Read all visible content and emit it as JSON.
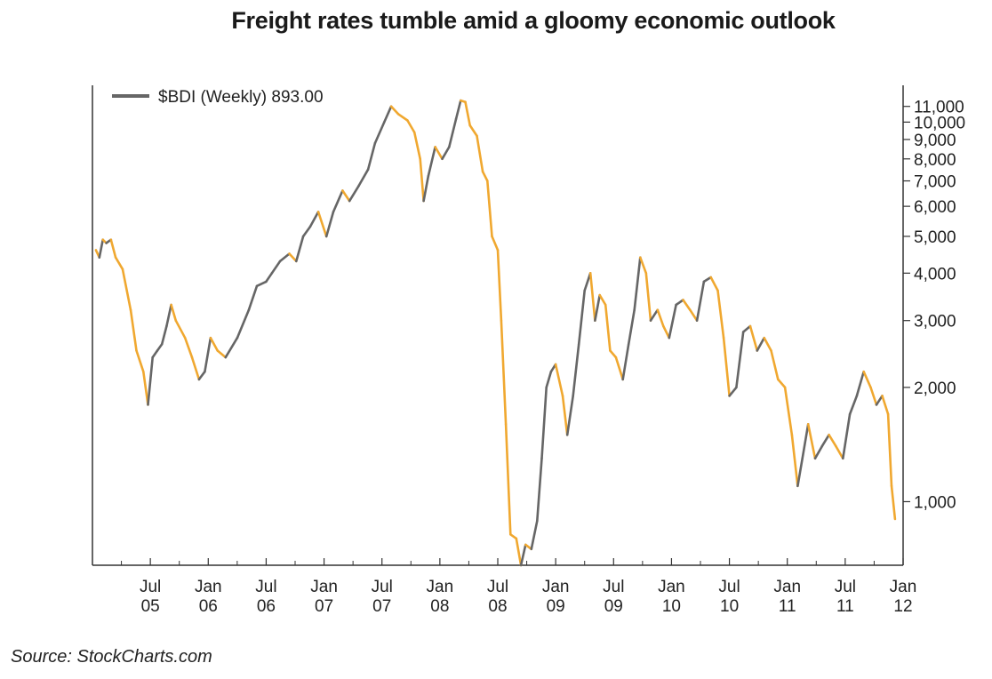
{
  "title": "Freight rates tumble amid a gloomy economic outlook",
  "source": "Source: StockCharts.com",
  "chart_data": {
    "type": "line",
    "title": "Freight rates tumble amid a gloomy economic outlook",
    "xlabel": "",
    "ylabel": "",
    "y_scale": "log",
    "ylim": [
      680,
      12500
    ],
    "grid": false,
    "legend_position": "top-left",
    "legend_label": "$BDI (Weekly) 893.00",
    "colors": {
      "line": "#666666",
      "down": "#f0a830",
      "axis": "#333333"
    },
    "y_ticks": [
      {
        "value": 1000,
        "label": "1,000"
      },
      {
        "value": 2000,
        "label": "2,000"
      },
      {
        "value": 3000,
        "label": "3,000"
      },
      {
        "value": 4000,
        "label": "4,000"
      },
      {
        "value": 5000,
        "label": "5,000"
      },
      {
        "value": 6000,
        "label": "6,000"
      },
      {
        "value": 7000,
        "label": "7,000"
      },
      {
        "value": 8000,
        "label": "8,000"
      },
      {
        "value": 9000,
        "label": "9,000"
      },
      {
        "value": 10000,
        "label": "10,000"
      },
      {
        "value": 11000,
        "label": "11,000"
      }
    ],
    "x_ticks": [
      {
        "x": 2005.5,
        "line1": "Jul",
        "line2": "05"
      },
      {
        "x": 2006.0,
        "line1": "Jan",
        "line2": "06"
      },
      {
        "x": 2006.5,
        "line1": "Jul",
        "line2": "06"
      },
      {
        "x": 2007.0,
        "line1": "Jan",
        "line2": "07"
      },
      {
        "x": 2007.5,
        "line1": "Jul",
        "line2": "07"
      },
      {
        "x": 2008.0,
        "line1": "Jan",
        "line2": "08"
      },
      {
        "x": 2008.5,
        "line1": "Jul",
        "line2": "08"
      },
      {
        "x": 2009.0,
        "line1": "Jan",
        "line2": "09"
      },
      {
        "x": 2009.5,
        "line1": "Jul",
        "line2": "09"
      },
      {
        "x": 2010.0,
        "line1": "Jan",
        "line2": "10"
      },
      {
        "x": 2010.5,
        "line1": "Jul",
        "line2": "10"
      },
      {
        "x": 2011.0,
        "line1": "Jan",
        "line2": "11"
      },
      {
        "x": 2011.5,
        "line1": "Jul",
        "line2": "11"
      },
      {
        "x": 2012.0,
        "line1": "Jan",
        "line2": "12"
      }
    ],
    "series": [
      {
        "name": "$BDI (Weekly) 893.00",
        "points": [
          [
            2005.03,
            4600
          ],
          [
            2005.06,
            4400
          ],
          [
            2005.09,
            4900
          ],
          [
            2005.12,
            4800
          ],
          [
            2005.16,
            4900
          ],
          [
            2005.2,
            4400
          ],
          [
            2005.26,
            4100
          ],
          [
            2005.33,
            3200
          ],
          [
            2005.38,
            2500
          ],
          [
            2005.44,
            2200
          ],
          [
            2005.48,
            1800
          ],
          [
            2005.52,
            2400
          ],
          [
            2005.56,
            2500
          ],
          [
            2005.6,
            2600
          ],
          [
            2005.64,
            2900
          ],
          [
            2005.68,
            3300
          ],
          [
            2005.72,
            3000
          ],
          [
            2005.8,
            2700
          ],
          [
            2005.86,
            2400
          ],
          [
            2005.92,
            2100
          ],
          [
            2005.97,
            2200
          ],
          [
            2006.02,
            2700
          ],
          [
            2006.08,
            2500
          ],
          [
            2006.15,
            2400
          ],
          [
            2006.25,
            2700
          ],
          [
            2006.35,
            3200
          ],
          [
            2006.42,
            3700
          ],
          [
            2006.5,
            3800
          ],
          [
            2006.55,
            4000
          ],
          [
            2006.62,
            4300
          ],
          [
            2006.7,
            4500
          ],
          [
            2006.76,
            4300
          ],
          [
            2006.82,
            5000
          ],
          [
            2006.88,
            5300
          ],
          [
            2006.95,
            5800
          ],
          [
            2007.02,
            5000
          ],
          [
            2007.08,
            5800
          ],
          [
            2007.16,
            6600
          ],
          [
            2007.22,
            6200
          ],
          [
            2007.3,
            6800
          ],
          [
            2007.38,
            7500
          ],
          [
            2007.44,
            8800
          ],
          [
            2007.52,
            10000
          ],
          [
            2007.58,
            11000
          ],
          [
            2007.64,
            10500
          ],
          [
            2007.72,
            10100
          ],
          [
            2007.78,
            9400
          ],
          [
            2007.83,
            8000
          ],
          [
            2007.86,
            6200
          ],
          [
            2007.9,
            7200
          ],
          [
            2007.96,
            8600
          ],
          [
            2008.02,
            8000
          ],
          [
            2008.08,
            8600
          ],
          [
            2008.14,
            10200
          ],
          [
            2008.18,
            11400
          ],
          [
            2008.22,
            11300
          ],
          [
            2008.26,
            9800
          ],
          [
            2008.32,
            9200
          ],
          [
            2008.37,
            7400
          ],
          [
            2008.41,
            7000
          ],
          [
            2008.45,
            5000
          ],
          [
            2008.5,
            4600
          ],
          [
            2008.53,
            3000
          ],
          [
            2008.57,
            1600
          ],
          [
            2008.61,
            820
          ],
          [
            2008.66,
            800
          ],
          [
            2008.7,
            680
          ],
          [
            2008.74,
            770
          ],
          [
            2008.79,
            750
          ],
          [
            2008.84,
            890
          ],
          [
            2008.88,
            1300
          ],
          [
            2008.92,
            2000
          ],
          [
            2008.96,
            2200
          ],
          [
            2009.0,
            2300
          ],
          [
            2009.06,
            1900
          ],
          [
            2009.1,
            1500
          ],
          [
            2009.15,
            1900
          ],
          [
            2009.2,
            2600
          ],
          [
            2009.25,
            3600
          ],
          [
            2009.3,
            4000
          ],
          [
            2009.34,
            3000
          ],
          [
            2009.38,
            3500
          ],
          [
            2009.43,
            3300
          ],
          [
            2009.47,
            2500
          ],
          [
            2009.52,
            2400
          ],
          [
            2009.58,
            2100
          ],
          [
            2009.63,
            2600
          ],
          [
            2009.68,
            3200
          ],
          [
            2009.73,
            4400
          ],
          [
            2009.78,
            4000
          ],
          [
            2009.82,
            3000
          ],
          [
            2009.88,
            3200
          ],
          [
            2009.93,
            2900
          ],
          [
            2009.98,
            2700
          ],
          [
            2010.04,
            3300
          ],
          [
            2010.1,
            3400
          ],
          [
            2010.16,
            3200
          ],
          [
            2010.22,
            3000
          ],
          [
            2010.28,
            3800
          ],
          [
            2010.34,
            3900
          ],
          [
            2010.4,
            3600
          ],
          [
            2010.45,
            2700
          ],
          [
            2010.5,
            1900
          ],
          [
            2010.56,
            2000
          ],
          [
            2010.62,
            2800
          ],
          [
            2010.68,
            2900
          ],
          [
            2010.74,
            2500
          ],
          [
            2010.8,
            2700
          ],
          [
            2010.86,
            2500
          ],
          [
            2010.92,
            2100
          ],
          [
            2010.98,
            2000
          ],
          [
            2011.04,
            1500
          ],
          [
            2011.09,
            1100
          ],
          [
            2011.13,
            1300
          ],
          [
            2011.18,
            1600
          ],
          [
            2011.24,
            1300
          ],
          [
            2011.3,
            1400
          ],
          [
            2011.36,
            1500
          ],
          [
            2011.42,
            1400
          ],
          [
            2011.48,
            1300
          ],
          [
            2011.54,
            1700
          ],
          [
            2011.6,
            1900
          ],
          [
            2011.66,
            2200
          ],
          [
            2011.72,
            2000
          ],
          [
            2011.77,
            1800
          ],
          [
            2011.82,
            1900
          ],
          [
            2011.87,
            1700
          ],
          [
            2011.9,
            1100
          ],
          [
            2011.93,
            900
          ]
        ]
      }
    ]
  }
}
